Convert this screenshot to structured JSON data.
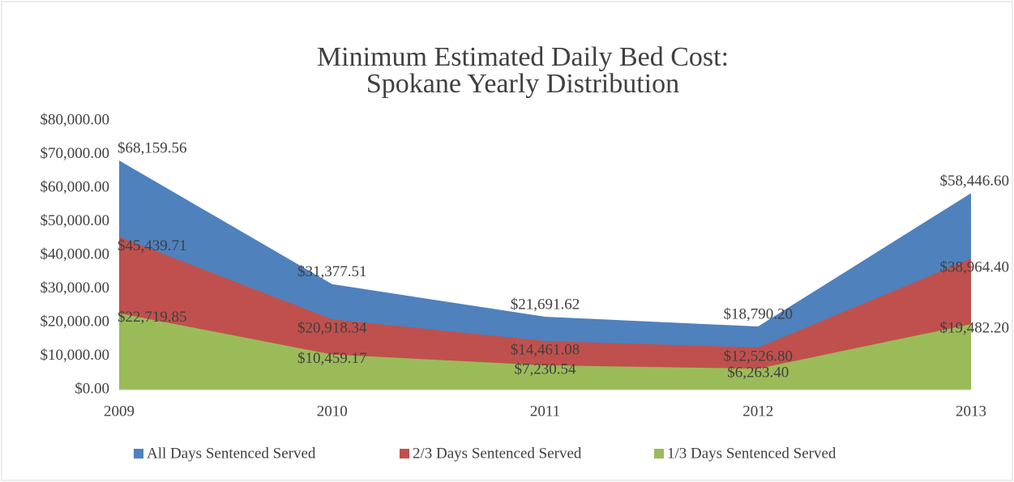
{
  "chart_data": {
    "type": "area",
    "title": [
      "Minimum Estimated Daily Bed Cost:",
      "Spokane Yearly Distribution"
    ],
    "categories": [
      "2009",
      "2010",
      "2011",
      "2012",
      "2013"
    ],
    "series": [
      {
        "name": "All Days Sentenced Served",
        "color": "#4f81bd",
        "values": [
          68159.56,
          31377.51,
          21691.62,
          18790.2,
          58446.6
        ],
        "value_labels": [
          "$68,159.56",
          "$31,377.51",
          "$21,691.62",
          "$18,790.20",
          "$58,446.60"
        ]
      },
      {
        "name": "2/3 Days Sentenced Served",
        "color": "#c0504d",
        "values": [
          45439.71,
          20918.34,
          14461.08,
          12526.8,
          38964.4
        ],
        "value_labels": [
          "$45,439.71",
          "$20,918.34",
          "$14,461.08",
          "$12,526.80",
          "$38,964.40"
        ]
      },
      {
        "name": "1/3 Days Sentenced Served",
        "color": "#9bbb59",
        "values": [
          22719.85,
          10459.17,
          7230.54,
          6263.4,
          19482.2
        ],
        "value_labels": [
          "$22,719.85",
          "$10,459.17",
          "$7,230.54",
          "$6,263.40",
          "$19,482.20"
        ]
      }
    ],
    "ylim": [
      0,
      80000
    ],
    "yticks": [
      {
        "value": 0,
        "label": "$0.00"
      },
      {
        "value": 10000,
        "label": "$10,000.00"
      },
      {
        "value": 20000,
        "label": "$20,000.00"
      },
      {
        "value": 30000,
        "label": "$30,000.00"
      },
      {
        "value": 40000,
        "label": "$40,000.00"
      },
      {
        "value": 50000,
        "label": "$50,000.00"
      },
      {
        "value": 60000,
        "label": "$60,000.00"
      },
      {
        "value": 70000,
        "label": "$70,000.00"
      },
      {
        "value": 80000,
        "label": "$80,000.00"
      }
    ],
    "legend": "bottom",
    "grid": false
  }
}
